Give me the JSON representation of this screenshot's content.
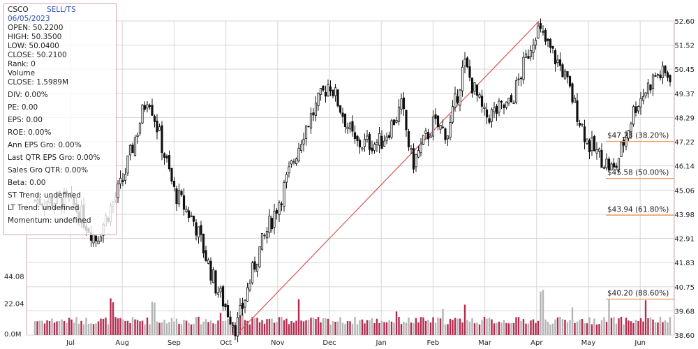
{
  "info": {
    "symbol": "CSCO",
    "signal": "SELL/TS",
    "date": "06/05/2023",
    "lines": [
      "OPEN: 50.2200",
      "HIGH: 50.3500",
      "LOW: 50.0400",
      "CLOSE: 50.2100",
      "Rank: 0",
      "Volume",
      "CLOSE: 1.5989M",
      "DIV: 0.00%",
      "PE: 0.00",
      "EPS: 0.00",
      "ROE: 0.00%",
      "Ann EPS Gro: 0.00%",
      "Last QTR EPS Gro: 0.00%",
      "Sales Gro QTR: 0.00%",
      "Beta: 0.00",
      "ST Trend: undefined",
      "LT Trend: undefined",
      "Momentum: undefined"
    ]
  },
  "colors": {
    "bull_volume": "#b52a4e",
    "bear_volume": "#b4b4b4",
    "candles": "#111111",
    "trendline": "#d9534f",
    "fib_lines": "#f0a060",
    "grid": "#d6d6d6",
    "plot_border": "#c9a0b0"
  },
  "chart_data": {
    "type": "candlestick",
    "price_axis": {
      "ticks": [
        "52.60",
        "51.52",
        "50.45",
        "49.37",
        "48.29",
        "47.22",
        "46.14",
        "45.06",
        "43.98",
        "42.91",
        "41.83",
        "40.75",
        "39.68",
        "38.60"
      ],
      "range": [
        38.6,
        52.6
      ],
      "position": "right"
    },
    "volume_axis": {
      "ticks": [
        "44.08",
        "22.04",
        "0.0M"
      ],
      "range": [
        0,
        66.12
      ],
      "position": "left"
    },
    "x_axis": {
      "labels": [
        "Jul",
        "Aug",
        "Sep",
        "Oct",
        "Nov",
        "Dec",
        "Jan",
        "Feb",
        "Mar",
        "Apr",
        "May",
        "Jun"
      ]
    },
    "grid": true,
    "waypoints": [
      {
        "month": 0,
        "price": 44.6
      },
      {
        "month": 0.5,
        "price": 42.9
      },
      {
        "month": 1.0,
        "price": 45.4
      },
      {
        "month": 1.5,
        "price": 49.4
      },
      {
        "month": 2.0,
        "price": 45.0
      },
      {
        "month": 2.4,
        "price": 43.6
      },
      {
        "month": 2.8,
        "price": 40.8
      },
      {
        "month": 3.2,
        "price": 38.9
      },
      {
        "month": 3.6,
        "price": 42.1
      },
      {
        "month": 4.1,
        "price": 45.0
      },
      {
        "month": 4.5,
        "price": 47.7
      },
      {
        "month": 5.0,
        "price": 49.9
      },
      {
        "month": 5.5,
        "price": 47.1
      },
      {
        "month": 6.0,
        "price": 47.2
      },
      {
        "month": 6.4,
        "price": 48.8
      },
      {
        "month": 6.6,
        "price": 46.2
      },
      {
        "month": 7.0,
        "price": 48.0
      },
      {
        "month": 7.3,
        "price": 47.6
      },
      {
        "month": 7.6,
        "price": 50.7
      },
      {
        "month": 8.0,
        "price": 48.3
      },
      {
        "month": 8.5,
        "price": 48.9
      },
      {
        "month": 9.0,
        "price": 52.3
      },
      {
        "month": 9.5,
        "price": 50.4
      },
      {
        "month": 10.0,
        "price": 47.1
      },
      {
        "month": 10.5,
        "price": 45.9
      },
      {
        "month": 10.9,
        "price": 48.8
      },
      {
        "month": 11.3,
        "price": 50.2
      }
    ],
    "volume_profile": {
      "base": 11.5,
      "spikes": [
        {
          "month": 0.8,
          "value": 24
        },
        {
          "month": 1.6,
          "value": 26
        },
        {
          "month": 2.9,
          "value": 18
        },
        {
          "month": 3.3,
          "value": 18
        },
        {
          "month": 4.4,
          "value": 37
        },
        {
          "month": 6.3,
          "value": 19
        },
        {
          "month": 7.2,
          "value": 17
        },
        {
          "month": 7.6,
          "value": 31
        },
        {
          "month": 9.1,
          "value": 31
        },
        {
          "month": 9.7,
          "value": 27
        },
        {
          "month": 10.4,
          "value": 26
        },
        {
          "month": 11.1,
          "value": 34
        }
      ]
    },
    "trendline": {
      "from": {
        "month": 3.2,
        "price": 38.6
      },
      "to": {
        "month": 9.05,
        "price": 52.6
      }
    },
    "fibonacci": [
      {
        "label": "$47.23 (38.20%)",
        "price": 47.23
      },
      {
        "label": "$45.58 (50.00%)",
        "price": 45.58
      },
      {
        "label": "$43.94 (61.80%)",
        "price": 43.94
      },
      {
        "label": "$40.20 (88.60%)",
        "price": 40.2
      }
    ]
  }
}
